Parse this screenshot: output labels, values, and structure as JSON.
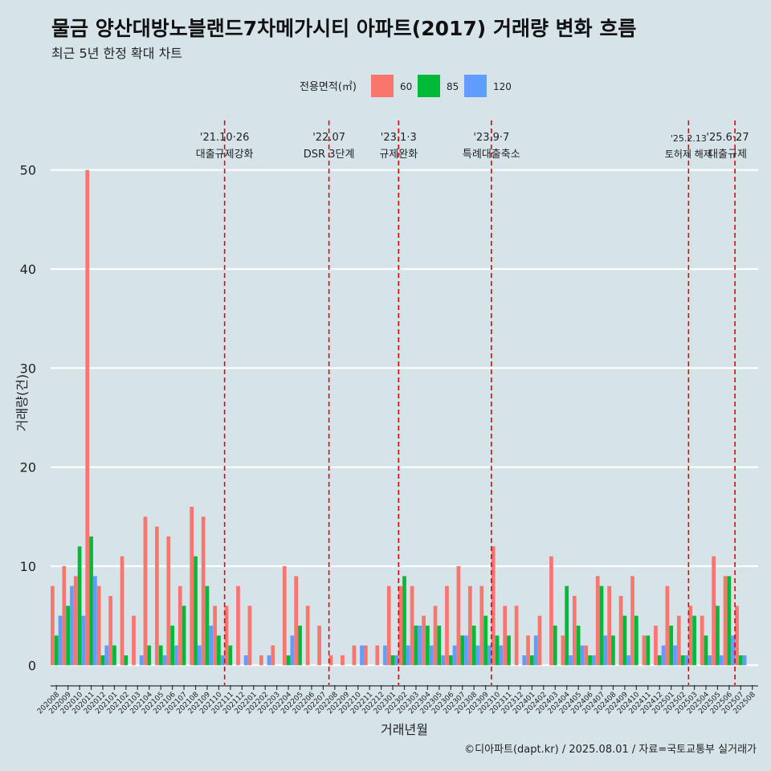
{
  "title": "물금 양산대방노블랜드7차메가시티 아파트(2017) 거래량 변화 흐름",
  "subtitle": "최근 5년 한정 확대 차트",
  "caption": "©디아파트(dapt.kr) / 2025.08.01 / 자료=국토교통부 실거래가",
  "colors": {
    "background": "#d6e4ea",
    "grid": "#ffffff",
    "vline": "#e8000b"
  },
  "chart_data": {
    "type": "bar",
    "xlabel": "거래년월",
    "ylabel": "거래량(건)",
    "ylim": [
      -2,
      55
    ],
    "yticks": [
      0,
      10,
      20,
      30,
      40,
      50
    ],
    "legend": {
      "title": "전용면적(㎡)",
      "position": "top"
    },
    "categories": [
      "202008",
      "202009",
      "202010",
      "202011",
      "202012",
      "202101",
      "202102",
      "202103",
      "202104",
      "202105",
      "202106",
      "202107",
      "202108",
      "202109",
      "202110",
      "202111",
      "202112",
      "202201",
      "202202",
      "202203",
      "202204",
      "202205",
      "202206",
      "202207",
      "202208",
      "202209",
      "202210",
      "202211",
      "202212",
      "202301",
      "202302",
      "202303",
      "202304",
      "202305",
      "202306",
      "202307",
      "202308",
      "202309",
      "202310",
      "202311",
      "202312",
      "202401",
      "202402",
      "202403",
      "202404",
      "202405",
      "202406",
      "202407",
      "202408",
      "202409",
      "202410",
      "202411",
      "202412",
      "202501",
      "202502",
      "202503",
      "202504",
      "202505",
      "202506",
      "202507",
      "202508"
    ],
    "series": [
      {
        "name": "60",
        "color": "#f8766d",
        "values": [
          8,
          10,
          9,
          50,
          8,
          7,
          11,
          5,
          15,
          14,
          13,
          8,
          16,
          15,
          6,
          6,
          8,
          6,
          1,
          2,
          10,
          9,
          6,
          4,
          1,
          1,
          2,
          2,
          2,
          8,
          8,
          8,
          5,
          6,
          8,
          10,
          8,
          8,
          12,
          6,
          6,
          3,
          5,
          11,
          3,
          7,
          2,
          9,
          8,
          7,
          9,
          3,
          4,
          8,
          5,
          6,
          5,
          11,
          9,
          6,
          0
        ]
      },
      {
        "name": "85",
        "color": "#00ba38",
        "values": [
          3,
          6,
          12,
          13,
          1,
          2,
          1,
          0,
          2,
          2,
          4,
          6,
          11,
          8,
          3,
          2,
          0,
          0,
          0,
          0,
          1,
          4,
          0,
          0,
          0,
          0,
          0,
          0,
          0,
          1,
          9,
          4,
          4,
          4,
          1,
          3,
          4,
          5,
          3,
          3,
          0,
          1,
          0,
          4,
          8,
          4,
          1,
          8,
          3,
          5,
          5,
          3,
          1,
          4,
          1,
          5,
          3,
          6,
          9,
          1,
          0
        ]
      },
      {
        "name": "120",
        "color": "#619cff",
        "values": [
          5,
          8,
          5,
          9,
          2,
          0,
          0,
          1,
          0,
          1,
          2,
          0,
          2,
          4,
          1,
          0,
          1,
          0,
          1,
          0,
          3,
          0,
          0,
          0,
          0,
          0,
          2,
          0,
          2,
          1,
          2,
          4,
          2,
          1,
          2,
          3,
          2,
          2,
          2,
          0,
          1,
          3,
          0,
          0,
          1,
          2,
          1,
          3,
          0,
          1,
          0,
          0,
          2,
          2,
          1,
          0,
          1,
          1,
          3,
          1,
          0
        ]
      }
    ],
    "events": [
      {
        "after": "202110",
        "date": "'21.10·26",
        "label": "대출규제강화"
      },
      {
        "after": "202207",
        "date": "'22.07",
        "label": "DSR 3단계"
      },
      {
        "after": "202301",
        "date": "'23.1·3",
        "label": "규제완화"
      },
      {
        "after": "202309",
        "date": "'23.9·7",
        "label": "특례대출축소"
      },
      {
        "after": "202502",
        "date": "'25.2.13",
        "label": "토허제 해제"
      },
      {
        "after": "202506",
        "date": "'25.6·27",
        "label": "대출규제"
      }
    ]
  }
}
